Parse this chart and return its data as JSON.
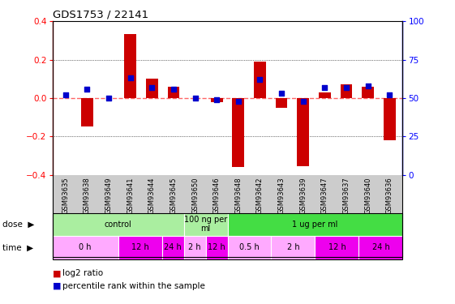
{
  "title": "GDS1753 / 22141",
  "samples": [
    "GSM93635",
    "GSM93638",
    "GSM93649",
    "GSM93641",
    "GSM93644",
    "GSM93645",
    "GSM93650",
    "GSM93646",
    "GSM93648",
    "GSM93642",
    "GSM93643",
    "GSM93639",
    "GSM93647",
    "GSM93637",
    "GSM93640",
    "GSM93636"
  ],
  "log2_ratio": [
    0.0,
    -0.15,
    0.0,
    0.335,
    0.1,
    0.06,
    0.0,
    -0.02,
    -0.36,
    0.19,
    -0.05,
    -0.355,
    0.03,
    0.07,
    0.06,
    -0.22
  ],
  "percentile_rank_pct": [
    52,
    56,
    50,
    63,
    57,
    56,
    50,
    49,
    48,
    62,
    53,
    48,
    57,
    57,
    58,
    52
  ],
  "ylim": [
    -0.4,
    0.4
  ],
  "yticks_left": [
    -0.4,
    -0.2,
    0.0,
    0.2,
    0.4
  ],
  "yticks_right": [
    0,
    25,
    50,
    75,
    100
  ],
  "dose_groups": [
    {
      "label": "control",
      "start": 0,
      "end": 6,
      "color": "#AAEEA0"
    },
    {
      "label": "100 ng per\nml",
      "start": 6,
      "end": 8,
      "color": "#AAEEA0"
    },
    {
      "label": "1 ug per ml",
      "start": 8,
      "end": 16,
      "color": "#44DD44"
    }
  ],
  "time_groups": [
    {
      "label": "0 h",
      "start": 0,
      "end": 3,
      "color": "#FFAAFF"
    },
    {
      "label": "12 h",
      "start": 3,
      "end": 5,
      "color": "#EE00EE"
    },
    {
      "label": "24 h",
      "start": 5,
      "end": 6,
      "color": "#EE00EE"
    },
    {
      "label": "2 h",
      "start": 6,
      "end": 7,
      "color": "#FFAAFF"
    },
    {
      "label": "12 h",
      "start": 7,
      "end": 8,
      "color": "#EE00EE"
    },
    {
      "label": "0.5 h",
      "start": 8,
      "end": 10,
      "color": "#FFAAFF"
    },
    {
      "label": "2 h",
      "start": 10,
      "end": 12,
      "color": "#FFAAFF"
    },
    {
      "label": "12 h",
      "start": 12,
      "end": 14,
      "color": "#EE00EE"
    },
    {
      "label": "24 h",
      "start": 14,
      "end": 16,
      "color": "#EE00EE"
    }
  ],
  "bar_color": "#CC0000",
  "square_color": "#0000CC",
  "zero_line_color": "#FF6666",
  "legend_red": "log2 ratio",
  "legend_blue": "percentile rank within the sample",
  "sample_bg_color": "#CCCCCC",
  "n_samples": 16
}
